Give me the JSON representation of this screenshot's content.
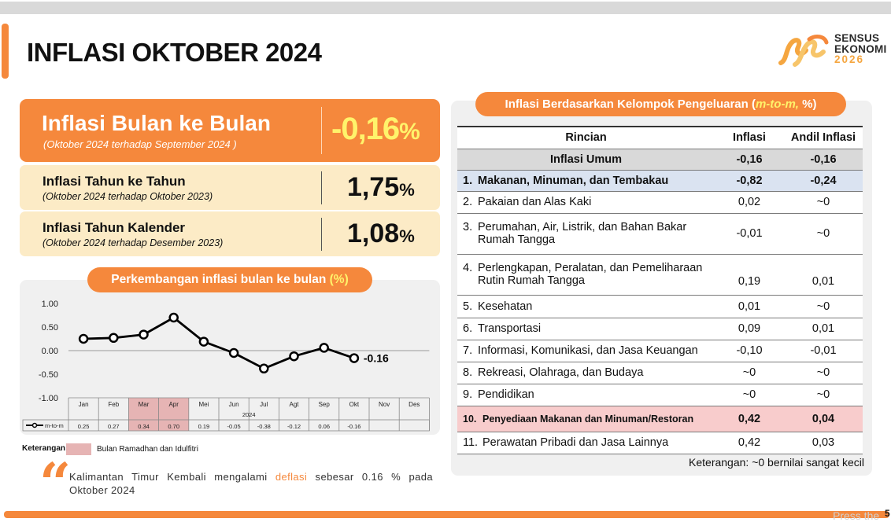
{
  "page_title": "INFLASI OKTOBER 2024",
  "logo": {
    "line1": "SENSUS",
    "line2": "EKONOMI",
    "line3": "2026"
  },
  "colors": {
    "accent": "#f5883c",
    "highlight_yellow": "#fff36b",
    "card_cream": "#fcebc6",
    "ramadhan_pink": "#e6b4b4"
  },
  "summary": {
    "mtm": {
      "title": "Inflasi Bulan ke Bulan",
      "subtitle": "(Oktober 2024 terhadap September 2024 )",
      "value": "-0,16",
      "unit": "%"
    },
    "yoy": {
      "title": "Inflasi Tahun ke Tahun",
      "subtitle": "(Oktober 2024 terhadap Oktober 2023)",
      "value": "1,75",
      "unit": "%"
    },
    "ytd": {
      "title": "Inflasi Tahun Kalender",
      "subtitle": "(Oktober 2024 terhadap Desember 2023)",
      "value": "1,08",
      "unit": "%"
    }
  },
  "chart_title": {
    "main": "Perkembangan inflasi bulan ke bulan ",
    "unit": "(%)"
  },
  "chart_data": {
    "type": "line",
    "categories": [
      "Jan",
      "Feb",
      "Mar",
      "Apr",
      "Mei",
      "Jun",
      "Jul",
      "Agt",
      "Sep",
      "Okt",
      "Nov",
      "Des"
    ],
    "year_label": "2024",
    "series": [
      {
        "name": "m-to-m",
        "values": [
          0.25,
          0.27,
          0.34,
          0.7,
          0.19,
          -0.05,
          -0.38,
          -0.12,
          0.06,
          -0.16,
          null,
          null
        ]
      }
    ],
    "table_values": [
      "0.25",
      "0.27",
      "0.34",
      "0.70",
      "0.19",
      "-0.05",
      "-0.38",
      "-0.12",
      "0.06",
      "-0.16",
      "",
      ""
    ],
    "highlight_categories": [
      "Mar",
      "Apr"
    ],
    "end_label": "-0.16",
    "yticks": [
      "1.00",
      "0.50",
      "0.00",
      "-0.50",
      "-1.00"
    ],
    "ylim": [
      -1,
      1
    ],
    "grid": false
  },
  "legend": {
    "label": "Keterangan:",
    "text": "Bulan Ramadhan dan Idulfitri"
  },
  "quote": {
    "before": "Kalimantan Timur Kembali mengalami ",
    "highlight": "deflasi",
    "after": " sebesar 0.16 % pada Oktober 2024"
  },
  "table": {
    "title_main": "Inflasi Berdasarkan Kelompok Pengeluaran (",
    "title_italic": "m-to-m,",
    "title_end": " %)",
    "headers": {
      "name": "Rincian",
      "inflasi": "Inflasi",
      "andil": "Andil Inflasi"
    },
    "umum": {
      "name": "Inflasi Umum",
      "inflasi": "-0,16",
      "andil": "-0,16"
    },
    "rows": [
      {
        "num": "1.",
        "line1": "Makanan, Minuman, dan Tembakau",
        "line2": "",
        "inflasi": "-0,82",
        "andil": "-0,24"
      },
      {
        "num": "2.",
        "line1": "Pakaian dan Alas Kaki",
        "line2": "",
        "inflasi": "0,02",
        "andil": "~0"
      },
      {
        "num": "3.",
        "line1": "Perumahan, Air, Listrik, dan Bahan Bakar",
        "line2": "Rumah Tangga",
        "inflasi": "-0,01",
        "andil": "~0"
      },
      {
        "num": "4.",
        "line1": "Perlengkapan, Peralatan, dan Pemeliharaan",
        "line2": "Rutin Rumah Tangga",
        "inflasi": "0,19",
        "andil": "0,01"
      },
      {
        "num": "5.",
        "line1": "Kesehatan",
        "line2": "",
        "inflasi": "0,01",
        "andil": "~0"
      },
      {
        "num": "6.",
        "line1": "Transportasi",
        "line2": "",
        "inflasi": "0,09",
        "andil": "0,01"
      },
      {
        "num": "7.",
        "line1": "Informasi, Komunikasi, dan Jasa Keuangan",
        "line2": "",
        "inflasi": "-0,10",
        "andil": "-0,01"
      },
      {
        "num": "8.",
        "line1": "Rekreasi, Olahraga, dan Budaya",
        "line2": "",
        "inflasi": "~0",
        "andil": "~0"
      },
      {
        "num": "9.",
        "line1": "Pendidikan",
        "line2": "",
        "inflasi": "~0",
        "andil": "~0"
      },
      {
        "num": "10.",
        "line1": "Penyediaan Makanan dan Minuman/Restoran",
        "line2": "",
        "inflasi": "0,42",
        "andil": "0,04"
      },
      {
        "num": "11.",
        "line1": "Perawatan Pribadi dan Jasa Lainnya",
        "line2": "",
        "inflasi": "0,42",
        "andil": "0,03"
      }
    ],
    "note": "Keterangan: ~0 bernilai sangat kecil"
  },
  "footer": {
    "page_number": "5",
    "press_the": "Press the"
  }
}
